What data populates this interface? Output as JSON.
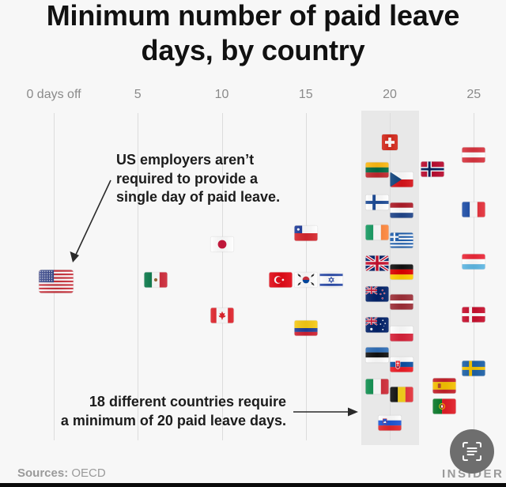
{
  "title": {
    "line1": "Minimum number of paid leave",
    "line2": "days, by country"
  },
  "axis": {
    "ticks": [
      {
        "value": 0,
        "label": "0 days off"
      },
      {
        "value": 5,
        "label": "5"
      },
      {
        "value": 10,
        "label": "10"
      },
      {
        "value": 15,
        "label": "15"
      },
      {
        "value": 20,
        "label": "20"
      },
      {
        "value": 25,
        "label": "25"
      }
    ]
  },
  "annotations": {
    "us": {
      "lines": [
        "US employers aren’t",
        "required to provide a",
        "single day of paid leave."
      ]
    },
    "twenty": {
      "lines": [
        "18 different countries require",
        "a minimum of 20 paid leave days."
      ]
    }
  },
  "footer": {
    "sources_label": "Sources:",
    "sources_value": "OECD",
    "brand": "INSIDER"
  },
  "overlay": {
    "scan_button_icon": "text-scan-icon"
  },
  "colors": {
    "background": "#f7f7f7",
    "highlight_band": "#e8e8e8",
    "gridline": "#dcdcdc",
    "axis_text": "#8a8a8a",
    "annotation_text": "#1c1c1c"
  },
  "chart_data": {
    "type": "scatter",
    "title": "Minimum number of paid leave days, by country",
    "xlabel": "days off",
    "ylabel": "",
    "xlim": [
      0,
      25
    ],
    "x_ticks": [
      0,
      5,
      10,
      15,
      20,
      25
    ],
    "x_tick_labels": [
      "0 days off",
      "5",
      "10",
      "15",
      "20",
      "25"
    ],
    "grid": "vertical",
    "highlight_band": {
      "x": 20,
      "label": "18 different countries require a minimum of 20 paid leave days."
    },
    "marker": "country flag",
    "points": [
      {
        "country": "United States",
        "icon": "flag-us",
        "days": 0,
        "dx": 3,
        "y": 356,
        "big": true
      },
      {
        "country": "Mexico",
        "icon": "flag-mx",
        "days": 6,
        "dx": 1,
        "y": 354
      },
      {
        "country": "Japan",
        "icon": "flag-jp",
        "days": 10,
        "dx": 0,
        "y": 309
      },
      {
        "country": "Canada",
        "icon": "flag-ca",
        "days": 10,
        "dx": 0,
        "y": 399
      },
      {
        "country": "Turkey",
        "icon": "flag-tr",
        "days": 14,
        "dx": -11,
        "y": 354
      },
      {
        "country": "Chile",
        "icon": "flag-cl",
        "days": 15,
        "dx": 0,
        "y": 295
      },
      {
        "country": "South Korea",
        "icon": "flag-kr",
        "days": 15,
        "dx": 0,
        "y": 354
      },
      {
        "country": "Colombia",
        "icon": "flag-co",
        "days": 15,
        "dx": 0,
        "y": 415
      },
      {
        "country": "Israel",
        "icon": "flag-il",
        "days": 16,
        "dx": 11,
        "y": 354
      },
      {
        "country": "Switzerland",
        "icon": "flag-ch",
        "days": 20,
        "dx": 0,
        "y": 180,
        "square": true
      },
      {
        "country": "Lithuania",
        "icon": "flag-lt",
        "days": 20,
        "dx": -16,
        "y": 215
      },
      {
        "country": "Czechia",
        "icon": "flag-cz",
        "days": 20,
        "dx": 15,
        "y": 227
      },
      {
        "country": "Finland",
        "icon": "flag-fi",
        "days": 20,
        "dx": -16,
        "y": 256
      },
      {
        "country": "Netherlands",
        "icon": "flag-nl",
        "days": 20,
        "dx": 15,
        "y": 266
      },
      {
        "country": "Ireland",
        "icon": "flag-ie",
        "days": 20,
        "dx": -16,
        "y": 294
      },
      {
        "country": "Greece",
        "icon": "flag-gr",
        "days": 20,
        "dx": 15,
        "y": 304
      },
      {
        "country": "United Kingdom",
        "icon": "flag-gb",
        "days": 20,
        "dx": -16,
        "y": 333
      },
      {
        "country": "Germany",
        "icon": "flag-de",
        "days": 20,
        "dx": 15,
        "y": 344
      },
      {
        "country": "New Zealand",
        "icon": "flag-nz",
        "days": 20,
        "dx": -16,
        "y": 372
      },
      {
        "country": "Latvia",
        "icon": "flag-lv",
        "days": 20,
        "dx": 15,
        "y": 382
      },
      {
        "country": "Australia",
        "icon": "flag-au",
        "days": 20,
        "dx": -16,
        "y": 411
      },
      {
        "country": "Poland",
        "icon": "flag-pl",
        "days": 20,
        "dx": 15,
        "y": 422
      },
      {
        "country": "Estonia",
        "icon": "flag-ee",
        "days": 20,
        "dx": -16,
        "y": 449
      },
      {
        "country": "Slovakia",
        "icon": "flag-sk",
        "days": 20,
        "dx": 15,
        "y": 461
      },
      {
        "country": "Italy",
        "icon": "flag-it",
        "days": 20,
        "dx": -16,
        "y": 489
      },
      {
        "country": "Belgium",
        "icon": "flag-be",
        "days": 20,
        "dx": 15,
        "y": 499
      },
      {
        "country": "Slovenia",
        "icon": "flag-si",
        "days": 20,
        "dx": 0,
        "y": 535
      },
      {
        "country": "Norway",
        "icon": "flag-no",
        "days": 22,
        "dx": 11,
        "y": 214
      },
      {
        "country": "Spain",
        "icon": "flag-es",
        "days": 23,
        "dx": 5,
        "y": 488
      },
      {
        "country": "Portugal",
        "icon": "flag-pt",
        "days": 23,
        "dx": 5,
        "y": 514
      },
      {
        "country": "Austria",
        "icon": "flag-at",
        "days": 25,
        "dx": 0,
        "y": 196
      },
      {
        "country": "France",
        "icon": "flag-fr",
        "days": 25,
        "dx": 0,
        "y": 265
      },
      {
        "country": "Luxembourg",
        "icon": "flag-lu",
        "days": 25,
        "dx": 0,
        "y": 331
      },
      {
        "country": "Denmark",
        "icon": "flag-dk",
        "days": 25,
        "dx": 0,
        "y": 398
      },
      {
        "country": "Sweden",
        "icon": "flag-se",
        "days": 25,
        "dx": 0,
        "y": 466
      }
    ]
  }
}
